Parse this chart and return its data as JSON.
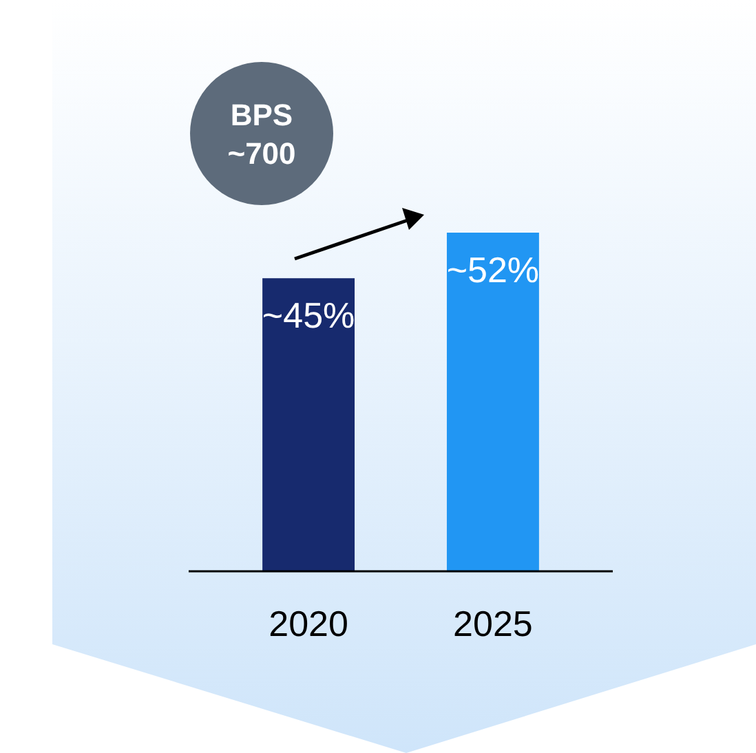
{
  "chart_data": {
    "type": "bar",
    "categories": [
      "2020",
      "2025"
    ],
    "values": [
      45,
      52
    ],
    "colors": [
      "#172a6e",
      "#2196f3"
    ],
    "value_labels": [
      "~45%",
      "~52%"
    ],
    "annotations": [
      "BPS ~700"
    ]
  }
}
